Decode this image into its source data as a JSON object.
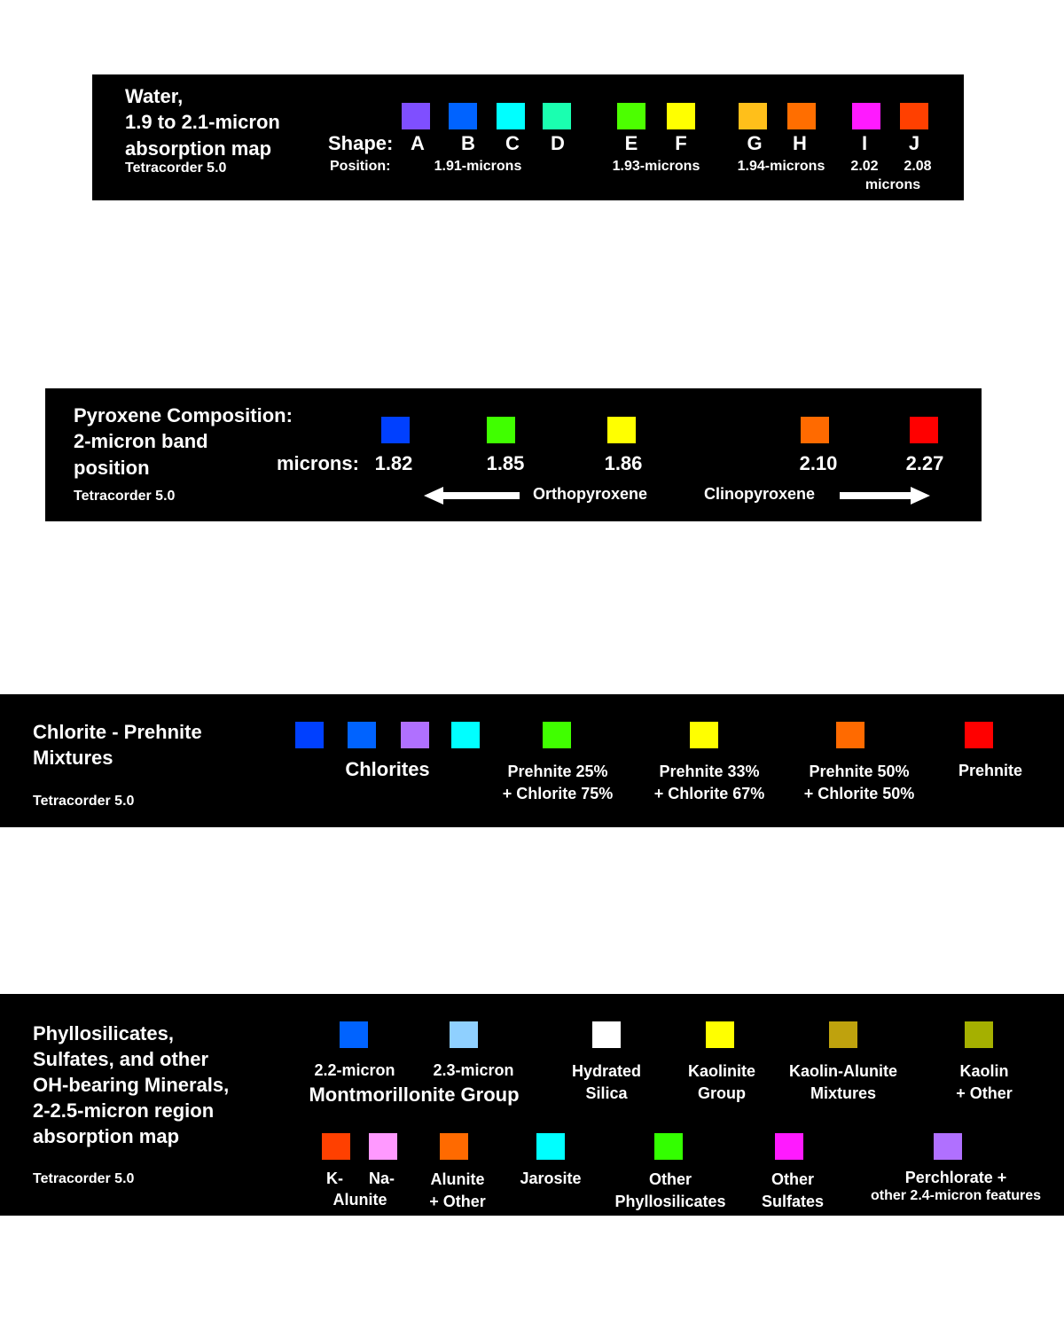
{
  "water": {
    "title_lines": [
      "Water,",
      "1.9 to 2.1-micron",
      "absorption map"
    ],
    "software": "Tetracorder 5.0",
    "shape_label": "Shape:",
    "position_label": "Position:",
    "swatches": [
      {
        "letter": "A",
        "color": "#7f4fff"
      },
      {
        "letter": "B",
        "color": "#0063ff"
      },
      {
        "letter": "C",
        "color": "#00ffff"
      },
      {
        "letter": "D",
        "color": "#1affb0"
      },
      {
        "letter": "E",
        "color": "#4cff00"
      },
      {
        "letter": "F",
        "color": "#ffff00"
      },
      {
        "letter": "G",
        "color": "#ffbf1a"
      },
      {
        "letter": "H",
        "color": "#ff6e00"
      },
      {
        "letter": "I",
        "color": "#ff1aff"
      },
      {
        "letter": "J",
        "color": "#ff4000"
      }
    ],
    "positions": [
      "1.91-microns",
      "1.93-microns",
      "1.94-microns",
      "2.02",
      "2.08",
      "microns"
    ]
  },
  "pyroxene": {
    "title_lines": [
      "Pyroxene Composition:",
      "2-micron band",
      "position"
    ],
    "software": "Tetracorder 5.0",
    "microns_label": "microns:",
    "swatches": [
      {
        "value": "1.82",
        "color": "#0040ff"
      },
      {
        "value": "1.85",
        "color": "#40ff00"
      },
      {
        "value": "1.86",
        "color": "#ffff00"
      },
      {
        "value": "2.10",
        "color": "#ff6a00"
      },
      {
        "value": "2.27",
        "color": "#ff0000"
      }
    ],
    "left_group": "Orthopyroxene",
    "right_group": "Clinopyroxene"
  },
  "chlorite": {
    "title_lines": [
      "Chlorite - Prehnite",
      "Mixtures"
    ],
    "software": "Tetracorder 5.0",
    "chlorite_colors": [
      "#0040ff",
      "#0063ff",
      "#b070ff",
      "#00ffff"
    ],
    "chlorites_label": "Chlorites",
    "mixes": [
      {
        "lines": [
          "Prehnite 25%",
          "+ Chlorite 75%"
        ],
        "color": "#40ff00"
      },
      {
        "lines": [
          "Prehnite 33%",
          "+ Chlorite 67%"
        ],
        "color": "#ffff00"
      },
      {
        "lines": [
          "Prehnite 50%",
          "+ Chlorite 50%"
        ],
        "color": "#ff6a00"
      },
      {
        "lines": [
          "Prehnite"
        ],
        "color": "#ff0000"
      }
    ]
  },
  "phyllo": {
    "title_lines": [
      "Phyllosilicates,",
      "Sulfates, and other",
      "OH-bearing Minerals,",
      "2-2.5-micron region",
      "absorption map"
    ],
    "software": "Tetracorder 5.0",
    "row1": [
      {
        "lines": [
          "2.2-micron"
        ],
        "color": "#0063ff"
      },
      {
        "lines": [
          "2.3-micron"
        ],
        "color": "#8fd0ff"
      },
      {
        "lines": [
          "Hydrated",
          "Silica"
        ],
        "color": "#ffffff"
      },
      {
        "lines": [
          "Kaolinite",
          "Group"
        ],
        "color": "#ffff00"
      },
      {
        "lines": [
          "Kaolin-Alunite",
          "Mixtures"
        ],
        "color": "#bfa20d"
      },
      {
        "lines": [
          "Kaolin",
          "+ Other"
        ],
        "color": "#a5b000"
      }
    ],
    "montmorillonite_label": "Montmorillonite  Group",
    "row2": [
      {
        "lines": [
          "K-",
          "Alunite"
        ],
        "color": "#ff4000"
      },
      {
        "lines": [
          "Na-"
        ],
        "color": "#ff99ff"
      },
      {
        "lines": [
          "Alunite",
          "+ Other"
        ],
        "color": "#ff6a00"
      },
      {
        "lines": [
          "Jarosite"
        ],
        "color": "#00ffff"
      },
      {
        "lines": [
          "Other",
          "Phyllosilicates"
        ],
        "color": "#33ff00"
      },
      {
        "lines": [
          "Other",
          "Sulfates"
        ],
        "color": "#ff1aff"
      },
      {
        "lines": [
          "Perchlorate +",
          "other 2.4-micron features"
        ],
        "color": "#b070ff"
      }
    ]
  }
}
